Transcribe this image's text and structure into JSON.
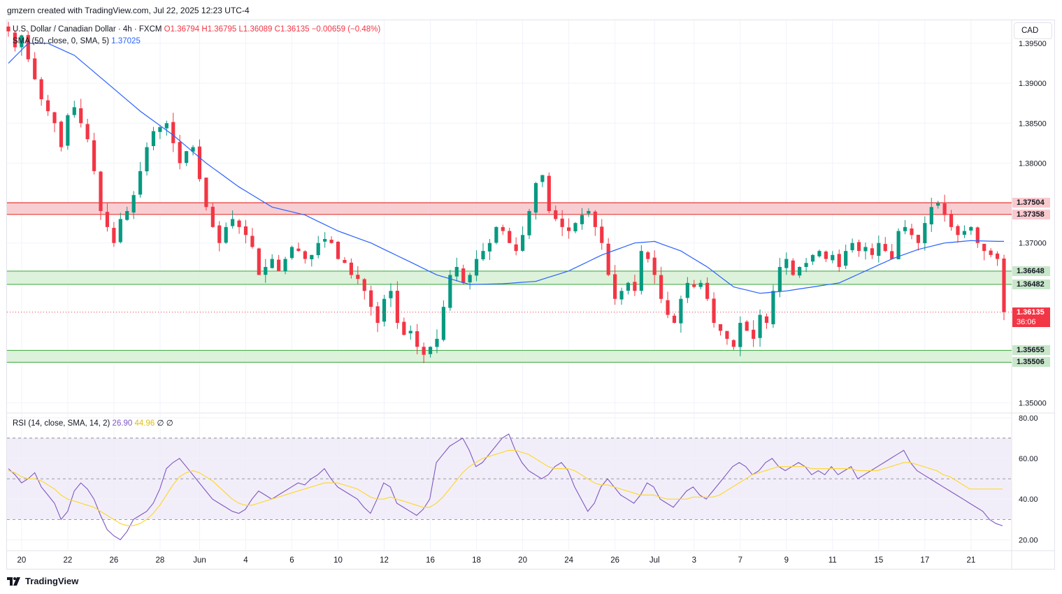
{
  "header": {
    "credit": "gmzern created with TradingView.com, Jul 22, 2025 12:23 UTC-4"
  },
  "legend": {
    "symbol": "U.S. Dollar / Canadian Dollar · 4h · FXCM",
    "open": "O1.36794",
    "high": "H1.36795",
    "low": "L1.36089",
    "close": "C1.36135",
    "change": "−0.00659 (−0.48%)",
    "sma_label": "SMA (50, close, 0, SMA, 5)",
    "sma_value": "1.37025",
    "rsi_label": "RSI (14, close, SMA, 14, 2)",
    "rsi_value": "26.90",
    "rsi_ma_value": "44.96",
    "rsi_extra1": "∅",
    "rsi_extra2": "∅"
  },
  "currency_button": "CAD",
  "footer": {
    "brand": "TradingView"
  },
  "colors": {
    "up": "#089981",
    "down": "#f23645",
    "sma": "#2962ff",
    "rsi": "#7e57c2",
    "rsi_ma": "#fdd835",
    "resistance_fill": "#f7c5ca",
    "support_fill": "#d7f0d3",
    "support_line": "#4caf50",
    "resistance_line": "#e53935"
  },
  "price_labels": [
    {
      "text": "1.37504",
      "price": 1.37504,
      "kind": "resistance"
    },
    {
      "text": "1.37358",
      "price": 1.37358,
      "kind": "resistance"
    },
    {
      "text": "1.36648",
      "price": 1.36648,
      "kind": "support"
    },
    {
      "text": "1.36482",
      "price": 1.36482,
      "kind": "support"
    },
    {
      "text": "1.36135",
      "price": 1.36135,
      "kind": "last",
      "countdown": "36:06"
    },
    {
      "text": "1.35655",
      "price": 1.35655,
      "kind": "support"
    },
    {
      "text": "1.35506",
      "price": 1.35506,
      "kind": "support"
    }
  ],
  "chart_data": [
    {
      "type": "candlestick",
      "title": "U.S. Dollar / Canadian Dollar · 4h · FXCM",
      "ylim": [
        1.3488,
        1.3978
      ],
      "y_ticks": [
        "1.35000",
        "1.37000",
        "1.38000",
        "1.38500",
        "1.39000",
        "1.39500"
      ],
      "x_tick_labels": [
        "20",
        "22",
        "26",
        "28",
        "Jun",
        "4",
        "6",
        "10",
        "12",
        "16",
        "18",
        "20",
        "24",
        "26",
        "Jul",
        "3",
        "7",
        "9",
        "11",
        "15",
        "17",
        "21"
      ],
      "x_tick_pos": [
        2,
        9,
        16,
        23,
        29,
        36,
        43,
        50,
        57,
        64,
        71,
        78,
        85,
        92,
        98,
        104,
        111,
        118,
        125,
        132,
        139,
        146
      ],
      "last_price": 1.36135,
      "zones": [
        {
          "kind": "resistance",
          "from": 1.37358,
          "to": 1.37504
        },
        {
          "kind": "support",
          "from": 1.36482,
          "to": 1.36648
        },
        {
          "kind": "support",
          "from": 1.35506,
          "to": 1.35655
        }
      ],
      "close_series_anchors": [
        [
          0,
          1.3965
        ],
        [
          1,
          1.3945
        ],
        [
          2,
          1.396
        ],
        [
          3,
          1.393
        ],
        [
          4,
          1.3905
        ],
        [
          5,
          1.388
        ],
        [
          7,
          1.385
        ],
        [
          8,
          1.382
        ],
        [
          9,
          1.386
        ],
        [
          10,
          1.387
        ],
        [
          11,
          1.385
        ],
        [
          12,
          1.383
        ],
        [
          13,
          1.379
        ],
        [
          14,
          1.374
        ],
        [
          15,
          1.372
        ],
        [
          16,
          1.37
        ],
        [
          17,
          1.373
        ],
        [
          18,
          1.374
        ],
        [
          19,
          1.376
        ],
        [
          20,
          1.379
        ],
        [
          21,
          1.382
        ],
        [
          22,
          1.384
        ],
        [
          23,
          1.3845
        ],
        [
          24,
          1.385
        ],
        [
          25,
          1.3825
        ],
        [
          26,
          1.38
        ],
        [
          27,
          1.3815
        ],
        [
          28,
          1.382
        ],
        [
          29,
          1.378
        ],
        [
          30,
          1.3745
        ],
        [
          31,
          1.372
        ],
        [
          32,
          1.37
        ],
        [
          33,
          1.372
        ],
        [
          34,
          1.373
        ],
        [
          35,
          1.372
        ],
        [
          36,
          1.371
        ],
        [
          37,
          1.3695
        ],
        [
          38,
          1.366
        ],
        [
          39,
          1.367
        ],
        [
          40,
          1.368
        ],
        [
          41,
          1.3665
        ],
        [
          42,
          1.368
        ],
        [
          43,
          1.3695
        ],
        [
          44,
          1.369
        ],
        [
          45,
          1.368
        ],
        [
          46,
          1.3685
        ],
        [
          47,
          1.37
        ],
        [
          48,
          1.3705
        ],
        [
          49,
          1.37
        ],
        [
          50,
          1.368
        ],
        [
          51,
          1.3675
        ],
        [
          52,
          1.366
        ],
        [
          53,
          1.3655
        ],
        [
          54,
          1.364
        ],
        [
          55,
          1.362
        ],
        [
          56,
          1.36
        ],
        [
          57,
          1.363
        ],
        [
          58,
          1.364
        ],
        [
          59,
          1.36
        ],
        [
          60,
          1.3585
        ],
        [
          61,
          1.359
        ],
        [
          62,
          1.357
        ],
        [
          63,
          1.356
        ],
        [
          64,
          1.357
        ],
        [
          65,
          1.358
        ],
        [
          66,
          1.362
        ],
        [
          67,
          1.366
        ],
        [
          68,
          1.367
        ],
        [
          69,
          1.365
        ],
        [
          70,
          1.366
        ],
        [
          71,
          1.368
        ],
        [
          72,
          1.369
        ],
        [
          73,
          1.37
        ],
        [
          74,
          1.372
        ],
        [
          75,
          1.3715
        ],
        [
          76,
          1.37
        ],
        [
          77,
          1.369
        ],
        [
          78,
          1.371
        ],
        [
          79,
          1.374
        ],
        [
          80,
          1.3775
        ],
        [
          81,
          1.3785
        ],
        [
          82,
          1.374
        ],
        [
          83,
          1.373
        ],
        [
          84,
          1.372
        ],
        [
          85,
          1.3715
        ],
        [
          86,
          1.3725
        ],
        [
          87,
          1.3735
        ],
        [
          88,
          1.374
        ],
        [
          89,
          1.372
        ],
        [
          90,
          1.37
        ],
        [
          91,
          1.366
        ],
        [
          92,
          1.363
        ],
        [
          93,
          1.364
        ],
        [
          94,
          1.365
        ],
        [
          95,
          1.364
        ],
        [
          96,
          1.369
        ],
        [
          97,
          1.368
        ],
        [
          98,
          1.366
        ],
        [
          99,
          1.363
        ],
        [
          100,
          1.361
        ],
        [
          101,
          1.36
        ],
        [
          102,
          1.363
        ],
        [
          103,
          1.365
        ],
        [
          104,
          1.3645
        ],
        [
          105,
          1.365
        ],
        [
          106,
          1.363
        ],
        [
          107,
          1.36
        ],
        [
          108,
          1.359
        ],
        [
          109,
          1.358
        ],
        [
          110,
          1.357
        ],
        [
          111,
          1.36
        ],
        [
          112,
          1.359
        ],
        [
          113,
          1.358
        ],
        [
          114,
          1.361
        ],
        [
          115,
          1.36
        ],
        [
          116,
          1.364
        ],
        [
          117,
          1.367
        ],
        [
          118,
          1.368
        ],
        [
          119,
          1.366
        ],
        [
          120,
          1.367
        ],
        [
          121,
          1.3675
        ],
        [
          122,
          1.3685
        ],
        [
          123,
          1.369
        ],
        [
          124,
          1.368
        ],
        [
          125,
          1.3685
        ],
        [
          126,
          1.367
        ],
        [
          127,
          1.369
        ],
        [
          128,
          1.37
        ],
        [
          129,
          1.369
        ],
        [
          130,
          1.3695
        ],
        [
          131,
          1.3685
        ],
        [
          132,
          1.37
        ],
        [
          133,
          1.369
        ],
        [
          134,
          1.368
        ],
        [
          135,
          1.3715
        ],
        [
          136,
          1.372
        ],
        [
          137,
          1.371
        ],
        [
          138,
          1.37
        ],
        [
          139,
          1.3725
        ],
        [
          140,
          1.3745
        ],
        [
          141,
          1.375
        ],
        [
          142,
          1.3735
        ],
        [
          143,
          1.372
        ],
        [
          144,
          1.371
        ],
        [
          145,
          1.3715
        ],
        [
          146,
          1.372
        ],
        [
          147,
          1.37
        ],
        [
          148,
          1.369
        ],
        [
          149,
          1.3685
        ],
        [
          150,
          1.368
        ],
        [
          151,
          1.36135
        ]
      ],
      "sma_anchors": [
        [
          0,
          1.3925
        ],
        [
          3,
          1.395
        ],
        [
          6,
          1.395
        ],
        [
          10,
          1.3935
        ],
        [
          15,
          1.39
        ],
        [
          20,
          1.3865
        ],
        [
          25,
          1.3835
        ],
        [
          30,
          1.38
        ],
        [
          35,
          1.377
        ],
        [
          40,
          1.3745
        ],
        [
          45,
          1.3735
        ],
        [
          50,
          1.3715
        ],
        [
          55,
          1.37
        ],
        [
          60,
          1.368
        ],
        [
          65,
          1.366
        ],
        [
          70,
          1.3648
        ],
        [
          75,
          1.3649
        ],
        [
          80,
          1.3652
        ],
        [
          85,
          1.3665
        ],
        [
          90,
          1.3685
        ],
        [
          95,
          1.37
        ],
        [
          98,
          1.3702
        ],
        [
          102,
          1.369
        ],
        [
          106,
          1.367
        ],
        [
          110,
          1.3645
        ],
        [
          114,
          1.3637
        ],
        [
          118,
          1.364
        ],
        [
          122,
          1.3645
        ],
        [
          126,
          1.365
        ],
        [
          130,
          1.3665
        ],
        [
          134,
          1.368
        ],
        [
          138,
          1.3692
        ],
        [
          142,
          1.37
        ],
        [
          146,
          1.3703
        ],
        [
          150,
          1.3702
        ]
      ]
    },
    {
      "type": "line",
      "title": "RSI (14, close, SMA, 14, 2)",
      "ylim": [
        15,
        82
      ],
      "y_ticks": [
        "80.00",
        "60.00",
        "40.00",
        "20.00"
      ],
      "bands": [
        30,
        50,
        70
      ],
      "series": [
        {
          "name": "RSI",
          "values": [
            55,
            52,
            48,
            50,
            53,
            46,
            42,
            38,
            30,
            34,
            44,
            48,
            45,
            40,
            32,
            25,
            22,
            20,
            24,
            30,
            32,
            34,
            38,
            45,
            55,
            58,
            60,
            56,
            52,
            48,
            44,
            40,
            38,
            36,
            34,
            33,
            35,
            40,
            44,
            42,
            40,
            42,
            44,
            46,
            48,
            47,
            50,
            52,
            55,
            50,
            46,
            44,
            42,
            40,
            36,
            33,
            40,
            48,
            46,
            38,
            36,
            34,
            32,
            35,
            40,
            58,
            62,
            66,
            68,
            70,
            64,
            56,
            58,
            62,
            66,
            70,
            72,
            64,
            58,
            54,
            52,
            50,
            52,
            56,
            58,
            54,
            46,
            40,
            34,
            38,
            46,
            50,
            46,
            42,
            40,
            38,
            42,
            48,
            46,
            40,
            38,
            36,
            40,
            44,
            46,
            42,
            40,
            44,
            48,
            52,
            56,
            58,
            56,
            52,
            54,
            58,
            60,
            56,
            54,
            56,
            58,
            56,
            52,
            54,
            52,
            56,
            52,
            54,
            56,
            50,
            52,
            54,
            56,
            58,
            60,
            62,
            64,
            58,
            54,
            52,
            50,
            48,
            46,
            44,
            42,
            40,
            38,
            36,
            34,
            30,
            28,
            26.9
          ]
        },
        {
          "name": "RSI-based MA",
          "values": [
            54,
            53,
            51,
            50,
            50,
            49,
            47,
            45,
            42,
            40,
            39,
            38,
            37,
            36,
            34,
            32,
            30,
            28,
            27,
            27,
            28,
            30,
            33,
            37,
            42,
            47,
            51,
            53,
            54,
            53,
            51,
            49,
            46,
            43,
            40,
            38,
            37,
            37,
            38,
            39,
            40,
            41,
            42,
            43,
            44,
            45,
            46,
            47,
            48,
            48,
            48,
            47,
            46,
            45,
            43,
            41,
            40,
            40,
            41,
            40,
            39,
            38,
            37,
            36,
            36,
            38,
            41,
            45,
            49,
            53,
            56,
            58,
            60,
            61,
            62,
            63,
            64,
            64,
            63,
            62,
            60,
            58,
            56,
            55,
            55,
            55,
            54,
            52,
            50,
            48,
            47,
            47,
            46,
            45,
            44,
            43,
            42,
            42,
            42,
            41,
            40,
            40,
            40,
            40,
            41,
            41,
            41,
            41,
            42,
            44,
            46,
            48,
            50,
            52,
            53,
            54,
            55,
            56,
            56,
            56,
            56,
            56,
            55,
            55,
            55,
            55,
            55,
            55,
            55,
            54,
            54,
            54,
            54,
            55,
            56,
            57,
            58,
            58,
            57,
            56,
            55,
            54,
            52,
            51,
            49,
            47,
            45,
            44.96,
            44.96,
            44.96,
            44.96,
            44.96
          ]
        }
      ]
    }
  ]
}
